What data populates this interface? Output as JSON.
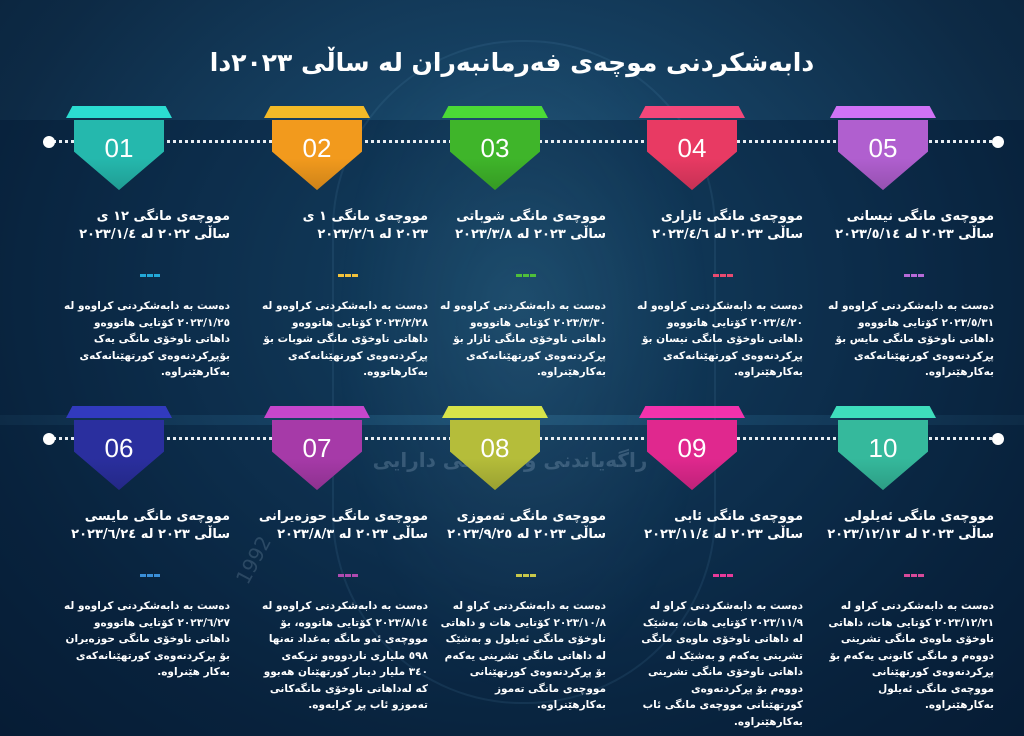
{
  "title": "دابەشکردنی موچەی فەرمانبەران  لە ساڵی ٢٠٢٣دا",
  "watermark_text": "راگەیاندنی وەزارەتی دارایی",
  "watermark_year": "1992",
  "items": [
    {
      "number": "01",
      "color": "#25b8ad",
      "title": "مووچەی مانگی ١٢ ی",
      "subtitle": "ساڵی ٢٠٢٢ لە ٢٠٢٣/١/٤",
      "dash_color": "#22a8d8",
      "body": "دەست بە دابەشکردنی کراوەو لە ٢٠٢٣/١/٢٥ کۆتایی هاتووەو داهاتی ناوخۆی مانگی یەک بۆپڕکردنەوەی کورتهێنانەکەی بەکارهێنراوە."
    },
    {
      "number": "02",
      "color": "#f29a1d",
      "title": "مووچەی مانگی ١ ی",
      "subtitle": "٢٠٢٣ لە ٢٠٢٣/٢/٦",
      "dash_color": "#f3c23b",
      "body": "دەست بە دابەشکردنی کراوەو لە ٢٠٢٣/٢/٢٨ کۆتایی هاتووەو داهاتی ناوخۆی مانگی شوبات بۆ پڕکردنەوەی کورتهێنانەکەی بەکارهاتووە."
    },
    {
      "number": "03",
      "color": "#3fb52a",
      "title": "مووچەی مانگی شوباتی",
      "subtitle": "ساڵی ٢٠٢٣ لە ٢٠٢٣/٣/٨",
      "dash_color": "#4fbf3a",
      "body": "دەست بە دابەشکردنی کراوەو لە ٢٠٢٣/٣/٣٠ کۆتایی هاتووەو داهاتی ناوخۆی مانگی ئازار بۆ پڕکردنەوەی کورتهێنانەکەی بەکارهێنراوە."
    },
    {
      "number": "04",
      "color": "#e83a63",
      "title": "مووچەی مانگی ئازاری",
      "subtitle": "ساڵی ٢٠٢٣ لە ٢٠٢٣/٤/٦",
      "dash_color": "#e94a70",
      "body": "دەست بە دابەشکردنی کراوەو لە ٢٠٢٣/٤/٢٠ کۆتایی هاتووەو داهاتی ناوخۆی مانگی نیسان بۆ پڕکردنەوەی کورتهێنانەکەی بەکارهێنراوە."
    },
    {
      "number": "05",
      "color": "#b05fcf",
      "title": "مووچەی مانگی نیسانی",
      "subtitle": "ساڵی ٢٠٢٣ لە ٢٠٢٣/٥/١٤",
      "dash_color": "#b86ad8",
      "body": "دەست بە دابەشکردنی کراوەو لە ٢٠٢٣/٥/٣١ کۆتایی هاتووەو داهاتی ناوخۆی مانگی مایس بۆ پڕکردنەوەی کورتهێنانەکەی بەکارهێنراوە."
    },
    {
      "number": "06",
      "color": "#2a2f9e",
      "title": "مووچەی مانگی مایسی",
      "subtitle": "ساڵی ٢٠٢٣ لە ٢٠٢٣/٦/٢٤",
      "dash_color": "#3a8fd8",
      "body": "دەست بە دابەشکردنی کراوەو لە ٢٠٢٣/٦/٢٧ کۆتایی هاتووەو داهاتی ناوخۆی مانگی حوزەیران بۆ پڕکردنەوەی کورتهێنانەکەی بەکار هێنراوە."
    },
    {
      "number": "07",
      "color": "#a63aa8",
      "title": "مووچەی مانگی حوزەیرانی",
      "subtitle": "ساڵی ٢٠٢٣ لە ٢٠٢٣/٨/٣",
      "dash_color": "#b04ab0",
      "body": "دەست بە دابەشکردنی کراوەو لە ٢٠٢٣/٨/١٤ کۆتایی هاتووە، بۆ مووچەی ئەو مانگە بەغداد تەنها ٥٩٨ ملیاری ناردووەو نزیکەی ٣٤٠ ملیار دینار کورتهێنان هەبوو کە لەداهاتی ناوخۆی مانگەکانی تەموزو ئاب پڕ کرایەوە."
    },
    {
      "number": "08",
      "color": "#b5bd3a",
      "title": "مووچەی مانگی تەموزی",
      "subtitle": "ساڵی ٢٠٢٣ لە ٢٠٢٣/٩/٢٥",
      "dash_color": "#c8c84a",
      "body": "دەست بە دابەشکردنی کراو لە ٢٠٢٣/١٠/٨ کۆتایی هات و داهاتی ناوخۆی مانگی ئەیلول و بەشێک لە داهاتی مانگی تشرینی یەکەم بۆ پڕکردنەوەی کورتهێنانی مووچەی مانگی تەموز بەکارهێنراوە."
    },
    {
      "number": "09",
      "color": "#e0288e",
      "title": "مووچەی مانگی ئابی",
      "subtitle": "ساڵی ٢٠٢٣ لە ٢٠٢٣/١١/٤",
      "dash_color": "#e83a9a",
      "body": "دەست بە دابەشکردنی کراو لە ٢٠٢٣/١١/٩ کۆتایی هات، بەشێک لە داهاتی ناوخۆی ماوەی مانگی تشرینی یەکەم و بەشێک لە داهاتی ناوخۆی مانگی تشرینی دووەم بۆ پڕکردنەوەی کورتهێنانی مووچەی مانگی ئاب بەکارهێنراوە."
    },
    {
      "number": "10",
      "color": "#35b99c",
      "title": "مووچەی مانگی ئەیلولی",
      "subtitle": "ساڵی ٢٠٢٣ لە ٢٠٢٣/١٢/١٣",
      "dash_color": "#d84a9a",
      "body": "دەست بە دابەشکردنی کراو لە ٢٠٢٣/١٢/٢١ کۆتایی هات، داهاتی ناوخۆی ماوەی مانگی تشرینی دووەم و مانگی کانونی یەکەم بۆ پڕکردنەوەی کورتهێنانی مووچەی مانگی ئەیلول بەکارهێنراوە."
    }
  ]
}
